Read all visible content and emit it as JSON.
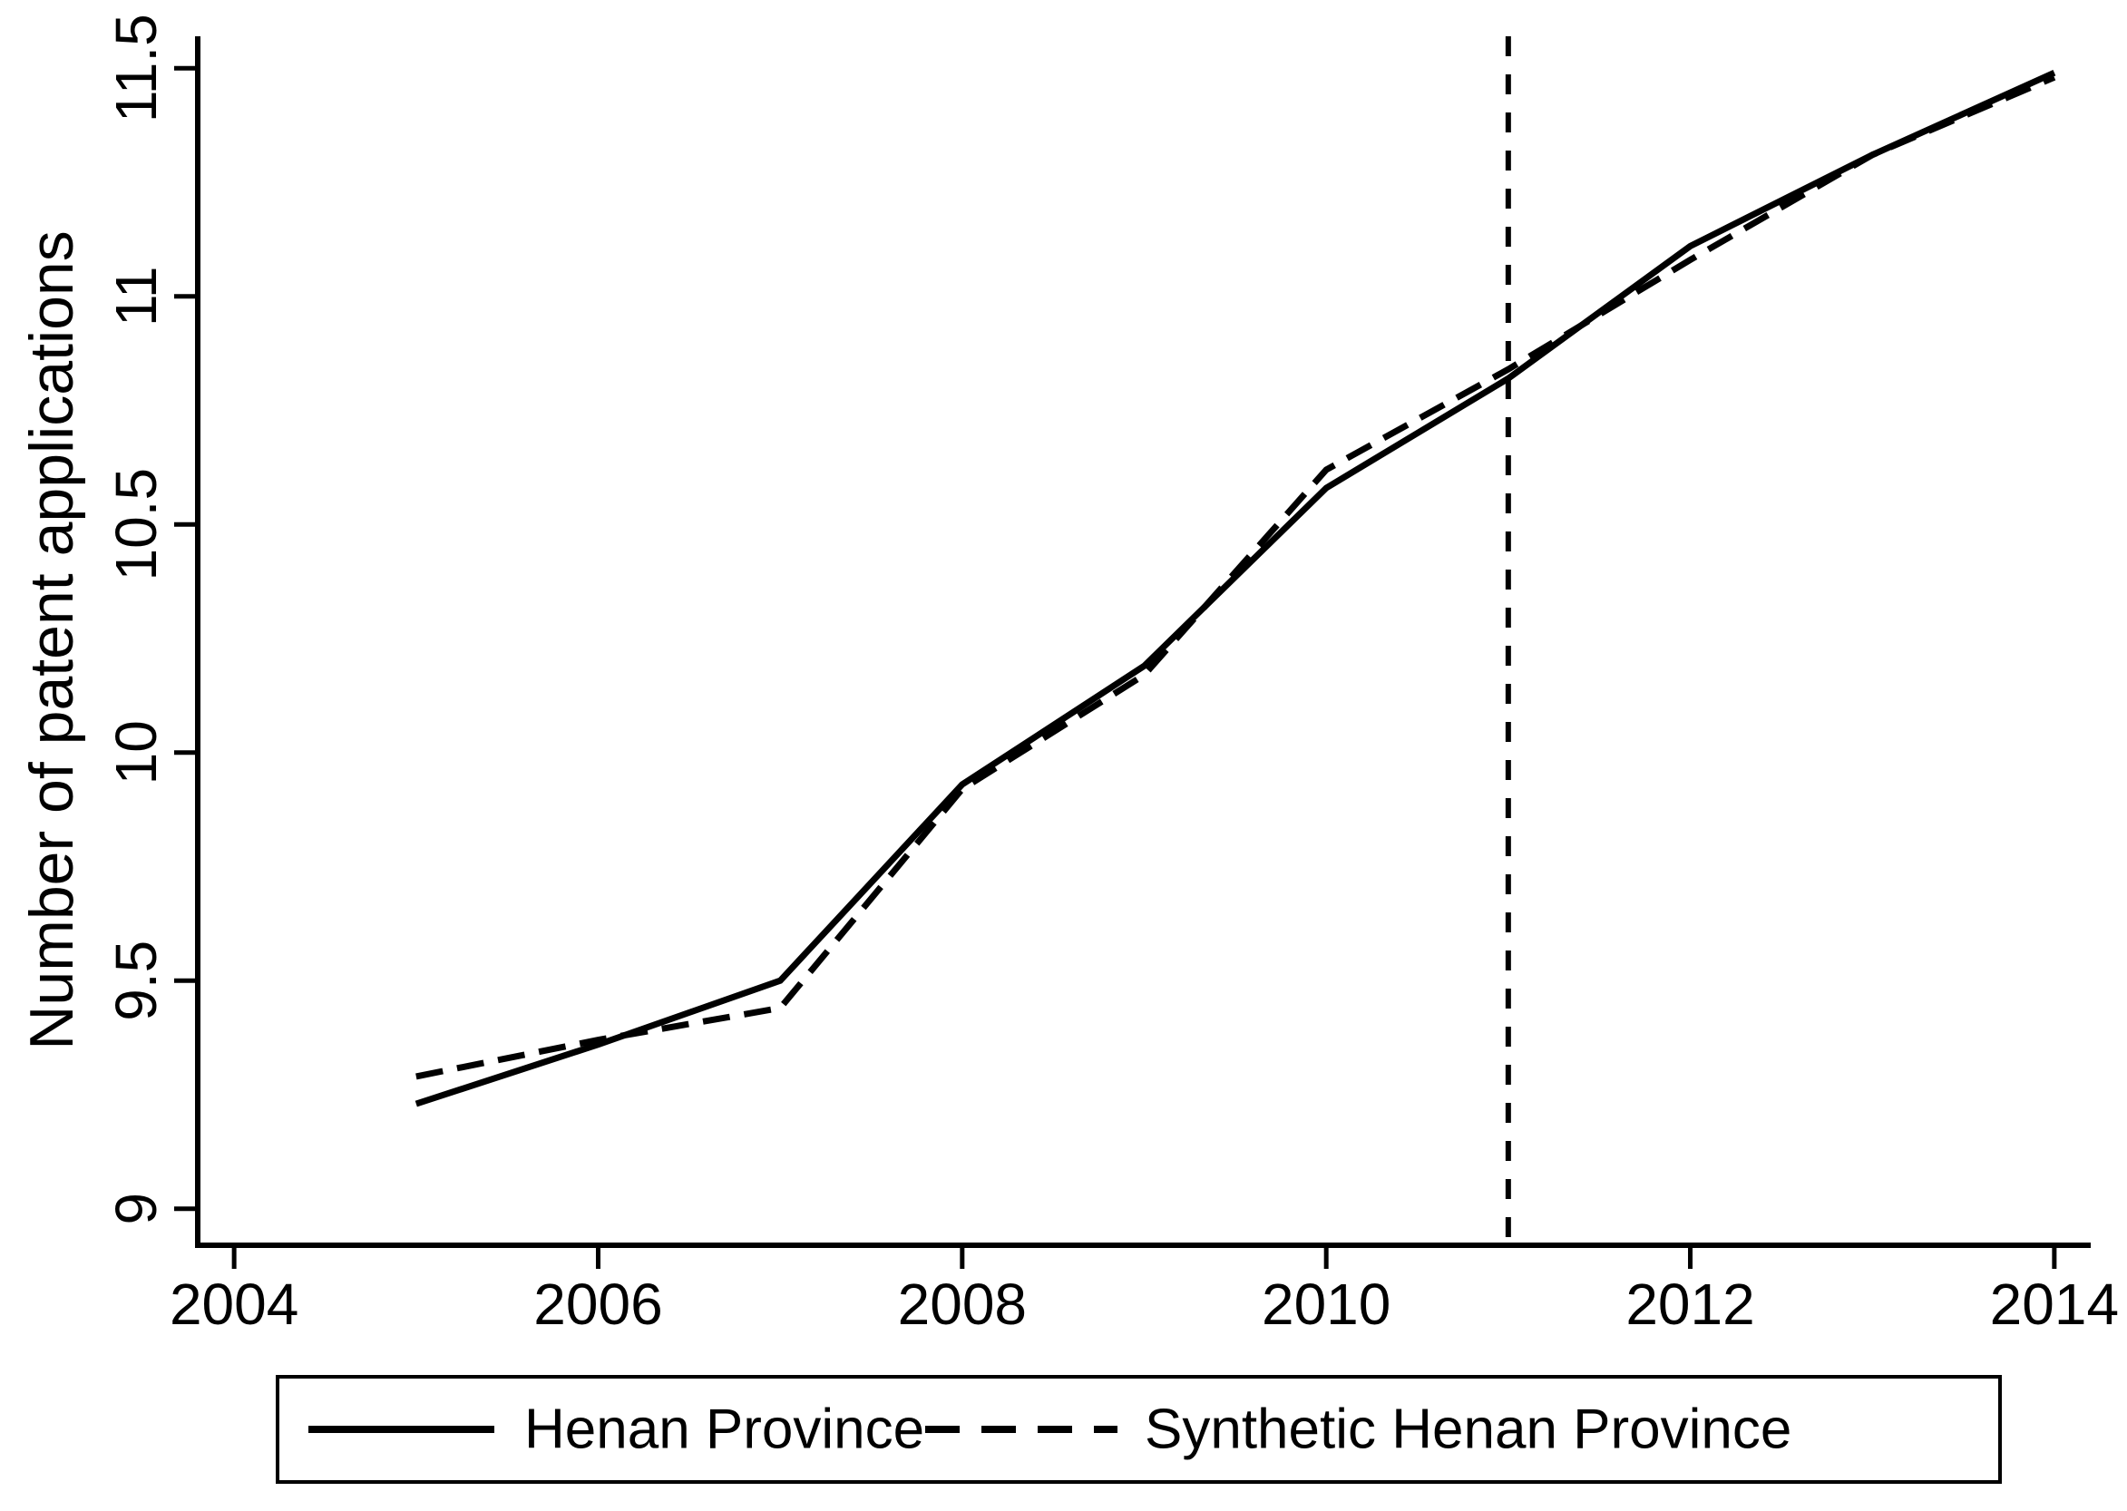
{
  "page": {
    "background_color": "#ffffff",
    "foreground_color": "#000000"
  },
  "chart_data": {
    "type": "line",
    "title": "",
    "xlabel": "",
    "ylabel": "Number of patent applications",
    "x": [
      2005,
      2006,
      2007,
      2008,
      2009,
      2010,
      2011,
      2012,
      2013,
      2014
    ],
    "series": [
      {
        "name": "Henan Province",
        "line_style": "solid",
        "color": "#000000",
        "values": [
          9.23,
          9.36,
          9.5,
          9.93,
          10.19,
          10.58,
          10.82,
          11.11,
          11.31,
          11.49
        ]
      },
      {
        "name": "Synthetic Henan Province",
        "line_style": "dashed",
        "color": "#000000",
        "values": [
          9.29,
          9.37,
          9.44,
          9.92,
          10.17,
          10.62,
          10.84,
          11.08,
          11.31,
          11.48
        ]
      }
    ],
    "x_tick_values": [
      2004,
      2006,
      2008,
      2010,
      2012,
      2014
    ],
    "x_tick_labels": [
      "2004",
      "2006",
      "2008",
      "2010",
      "2012",
      "2014"
    ],
    "y_tick_values": [
      9,
      9.5,
      10,
      10.5,
      11,
      11.5
    ],
    "y_tick_labels": [
      "9",
      "9.5",
      "10",
      "10.5",
      "11",
      "11.5"
    ],
    "xlim": [
      2003.8,
      2014.2
    ],
    "ylim": [
      8.92,
      11.57
    ],
    "grid": "off",
    "reference_line": {
      "orientation": "vertical",
      "x": 2011,
      "style": "dashed",
      "color": "#000000"
    },
    "legend": {
      "position": "bottom",
      "entries": [
        "Henan Province",
        "Synthetic Henan Province"
      ]
    }
  }
}
